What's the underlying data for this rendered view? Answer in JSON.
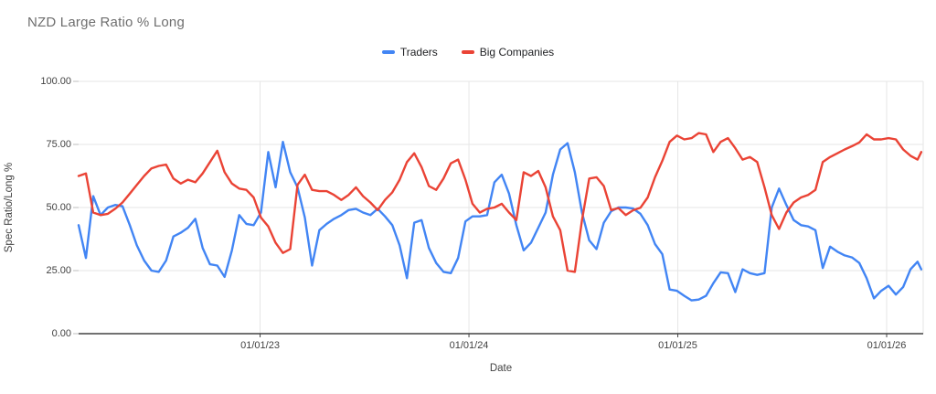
{
  "chart_data": {
    "type": "line",
    "title": "NZD Large Ratio % Long",
    "xlabel": "Date",
    "ylabel": "Spec Ratio/Long %",
    "xlim": [
      2022.131,
      2026.175
    ],
    "ylim": [
      0,
      100
    ],
    "grid": true,
    "legend_position": "top",
    "y_ticks": [
      {
        "value": 0,
        "label": "0.00"
      },
      {
        "value": 25,
        "label": "25.00"
      },
      {
        "value": 50,
        "label": "50.00"
      },
      {
        "value": 75,
        "label": "75.00"
      },
      {
        "value": 100,
        "label": "100.00"
      }
    ],
    "x_ticks": [
      {
        "value": 2023,
        "label": "01/01/23"
      },
      {
        "value": 2024,
        "label": "01/01/24"
      },
      {
        "value": 2025,
        "label": "01/01/25"
      },
      {
        "value": 2026,
        "label": "01/01/26"
      }
    ],
    "x": [
      2022.131,
      2022.166,
      2022.201,
      2022.236,
      2022.271,
      2022.306,
      2022.341,
      2022.376,
      2022.41,
      2022.445,
      2022.48,
      2022.515,
      2022.55,
      2022.585,
      2022.62,
      2022.655,
      2022.69,
      2022.725,
      2022.76,
      2022.795,
      2022.83,
      2022.865,
      2022.9,
      2022.934,
      2022.969,
      2023.004,
      2023.039,
      2023.074,
      2023.109,
      2023.144,
      2023.179,
      2023.214,
      2023.249,
      2023.284,
      2023.319,
      2023.354,
      2023.389,
      2023.424,
      2023.459,
      2023.493,
      2023.528,
      2023.563,
      2023.598,
      2023.633,
      2023.668,
      2023.703,
      2023.738,
      2023.773,
      2023.808,
      2023.843,
      2023.878,
      2023.913,
      2023.948,
      2023.983,
      2024.017,
      2024.052,
      2024.087,
      2024.122,
      2024.157,
      2024.192,
      2024.227,
      2024.262,
      2024.297,
      2024.332,
      2024.367,
      2024.402,
      2024.437,
      2024.472,
      2024.507,
      2024.541,
      2024.576,
      2024.611,
      2024.646,
      2024.681,
      2024.716,
      2024.751,
      2024.786,
      2024.821,
      2024.856,
      2024.891,
      2024.926,
      2024.961,
      2024.996,
      2025.031,
      2025.066,
      2025.1,
      2025.135,
      2025.17,
      2025.205,
      2025.24,
      2025.275,
      2025.31,
      2025.345,
      2025.38,
      2025.415,
      2025.45,
      2025.485,
      2025.52,
      2025.555,
      2025.59,
      2025.624,
      2025.659,
      2025.694,
      2025.729,
      2025.764,
      2025.799,
      2025.834,
      2025.869,
      2025.904,
      2025.939,
      2025.974,
      2026.009,
      2026.044,
      2026.079,
      2026.114,
      2026.148,
      2026.166
    ],
    "series": [
      {
        "name": "Traders",
        "color": "#4285F4",
        "values": [
          43,
          30,
          54.5,
          47,
          50,
          51,
          50.5,
          43,
          35,
          29,
          25,
          24.5,
          29,
          38.5,
          40,
          42,
          45.5,
          34,
          27.5,
          27,
          22.5,
          33,
          47,
          43.5,
          43,
          48,
          72,
          58,
          76,
          64,
          58,
          46,
          27,
          41,
          43.5,
          45.5,
          47,
          49,
          49.5,
          48,
          47,
          49.5,
          46.5,
          43,
          35,
          22,
          44,
          45,
          34,
          28,
          24.5,
          24,
          30,
          44.5,
          46.5,
          46.5,
          47,
          60,
          63,
          55.5,
          43,
          33,
          36,
          42,
          48,
          63,
          73,
          75.5,
          64,
          48,
          37,
          33.5,
          44,
          48.5,
          50,
          50,
          49.6,
          47.5,
          43,
          35.5,
          31.5,
          17.5,
          17,
          15,
          13.2,
          13.5,
          15,
          20,
          24.3,
          24,
          16.5,
          25.5,
          24,
          23.3,
          24,
          50,
          57.5,
          51,
          45,
          43,
          42.5,
          41,
          26,
          34.5,
          32.5,
          31,
          30.2,
          28,
          22,
          14,
          17,
          19,
          15.5,
          18.5,
          25.5,
          28.5,
          25.5
        ]
      },
      {
        "name": "Big Companies",
        "color": "#EA4335",
        "values": [
          62.5,
          63.5,
          48,
          47,
          47.5,
          49.5,
          52,
          55.5,
          59,
          62.5,
          65.5,
          66.5,
          67,
          61.5,
          59.5,
          61,
          60,
          63.5,
          68,
          72.5,
          64,
          59.5,
          57.5,
          57,
          54,
          46,
          42.5,
          36,
          32,
          33.5,
          59,
          63,
          57,
          56.5,
          56.5,
          55,
          53,
          55,
          58,
          54.5,
          52,
          49,
          53,
          56,
          61,
          68,
          71.5,
          66,
          58.5,
          57,
          61.5,
          67.5,
          69,
          61,
          51.5,
          48,
          49.5,
          50,
          51.5,
          48,
          45,
          64,
          62.5,
          64.5,
          58,
          46.5,
          41,
          25,
          24.5,
          45,
          61.5,
          62,
          58.5,
          49,
          49.8,
          47,
          48.9,
          49.9,
          54,
          62,
          68.5,
          76,
          78.5,
          77,
          77.5,
          79.5,
          79,
          72,
          76,
          77.5,
          73.5,
          69,
          70,
          68,
          58,
          47,
          41.5,
          48,
          52,
          54,
          55,
          57,
          68,
          70,
          71.5,
          73,
          74.3,
          75.8,
          79,
          77,
          77,
          77.5,
          77,
          73,
          70.5,
          69,
          72
        ]
      }
    ]
  },
  "style": {
    "gridline_color": "#e6e6e6",
    "axis_line_color": "#424242",
    "tick_color": "#bdbdbd",
    "title_color": "#6e6e6e",
    "label_color": "#424242"
  }
}
